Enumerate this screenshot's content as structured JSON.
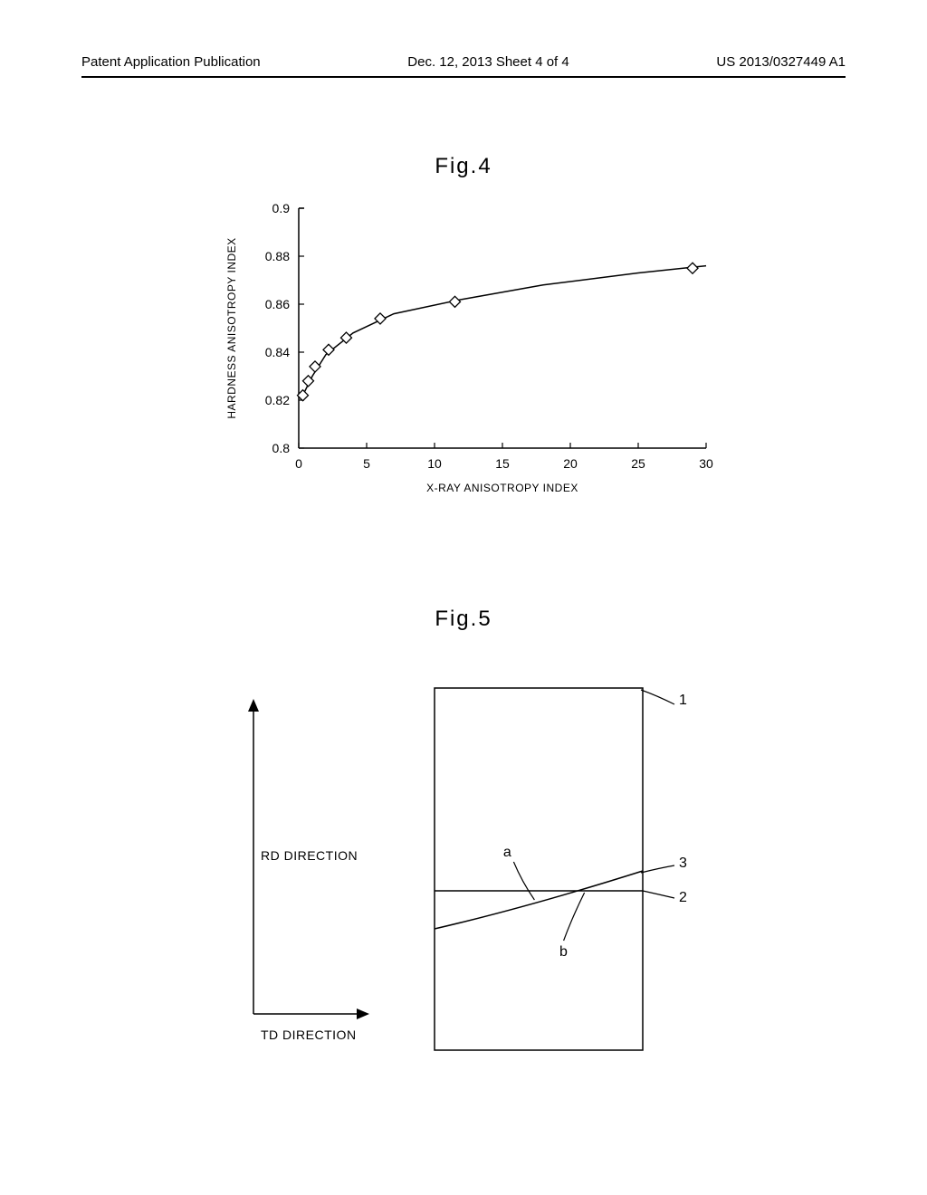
{
  "header": {
    "left": "Patent Application Publication",
    "center": "Dec. 12, 2013  Sheet 4 of 4",
    "right": "US 2013/0327449 A1"
  },
  "fig4": {
    "title": "Fig.4",
    "type": "scatter-line",
    "xlabel": "X-RAY ANISOTROPY INDEX",
    "ylabel": "HARDNESS ANISOTROPY INDEX",
    "xlim": [
      0,
      30
    ],
    "ylim": [
      0.8,
      0.9
    ],
    "xticks": [
      0,
      5,
      10,
      15,
      20,
      25,
      30
    ],
    "yticks": [
      0.8,
      0.82,
      0.84,
      0.86,
      0.88,
      0.9
    ],
    "xtick_labels": [
      "0",
      "5",
      "10",
      "15",
      "20",
      "25",
      "30"
    ],
    "ytick_labels": [
      "0.8",
      "0.82",
      "0.84",
      "0.86",
      "0.88",
      "0.9"
    ],
    "points": [
      {
        "x": 0.3,
        "y": 0.822
      },
      {
        "x": 0.7,
        "y": 0.828
      },
      {
        "x": 1.2,
        "y": 0.834
      },
      {
        "x": 2.2,
        "y": 0.841
      },
      {
        "x": 3.5,
        "y": 0.846
      },
      {
        "x": 6.0,
        "y": 0.854
      },
      {
        "x": 11.5,
        "y": 0.861
      },
      {
        "x": 29.0,
        "y": 0.875
      }
    ],
    "curve": [
      {
        "x": 0.3,
        "y": 0.822
      },
      {
        "x": 1.0,
        "y": 0.83
      },
      {
        "x": 2.0,
        "y": 0.839
      },
      {
        "x": 4.0,
        "y": 0.848
      },
      {
        "x": 7.0,
        "y": 0.856
      },
      {
        "x": 12.0,
        "y": 0.862
      },
      {
        "x": 18.0,
        "y": 0.868
      },
      {
        "x": 25.0,
        "y": 0.873
      },
      {
        "x": 30.0,
        "y": 0.876
      }
    ],
    "marker_size": 6,
    "line_width": 1.5,
    "axis_color": "#000000",
    "line_color": "#000000",
    "marker_fill": "#ffffff",
    "marker_stroke": "#000000",
    "tick_fontsize": 14,
    "label_fontsize": 12,
    "background_color": "#ffffff"
  },
  "fig5": {
    "title": "Fig.5",
    "type": "diagram",
    "rd_label": "RD DIRECTION",
    "td_label": "TD DIRECTION",
    "annotations": {
      "a": "a",
      "b": "b",
      "n1": "1",
      "n2": "2",
      "n3": "3"
    },
    "colors": {
      "stroke": "#000000",
      "background": "#ffffff"
    },
    "line_width": 1.5,
    "label_fontsize": 14
  }
}
